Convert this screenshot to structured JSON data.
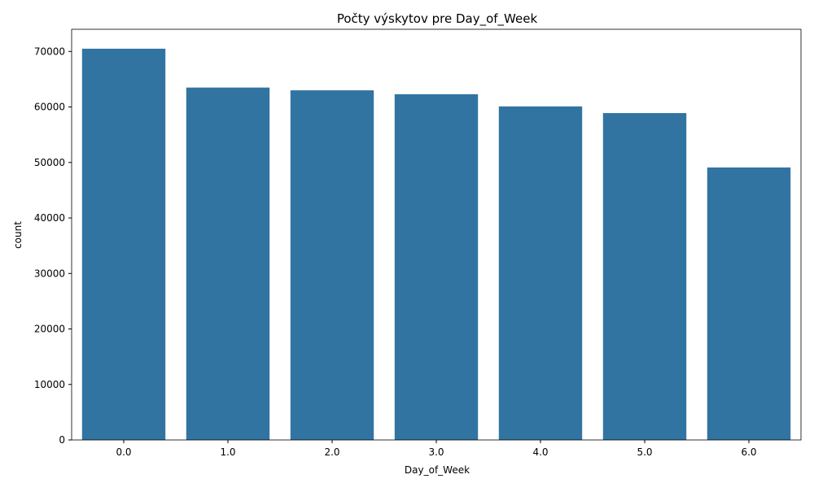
{
  "chart_data": {
    "type": "bar",
    "title": "Počty výskytov pre Day_of_Week",
    "xlabel": "Day_of_Week",
    "ylabel": "count",
    "categories": [
      "0.0",
      "1.0",
      "2.0",
      "3.0",
      "4.0",
      "5.0",
      "6.0"
    ],
    "values": [
      70500,
      63500,
      63000,
      62300,
      60100,
      58900,
      49100
    ],
    "ylim": [
      0,
      74000
    ],
    "yticks": [
      0,
      10000,
      20000,
      30000,
      40000,
      50000,
      60000,
      70000
    ],
    "ytick_labels": [
      "0",
      "10000",
      "20000",
      "30000",
      "40000",
      "50000",
      "60000",
      "70000"
    ],
    "grid": false,
    "bar_color": "#3274a1"
  }
}
